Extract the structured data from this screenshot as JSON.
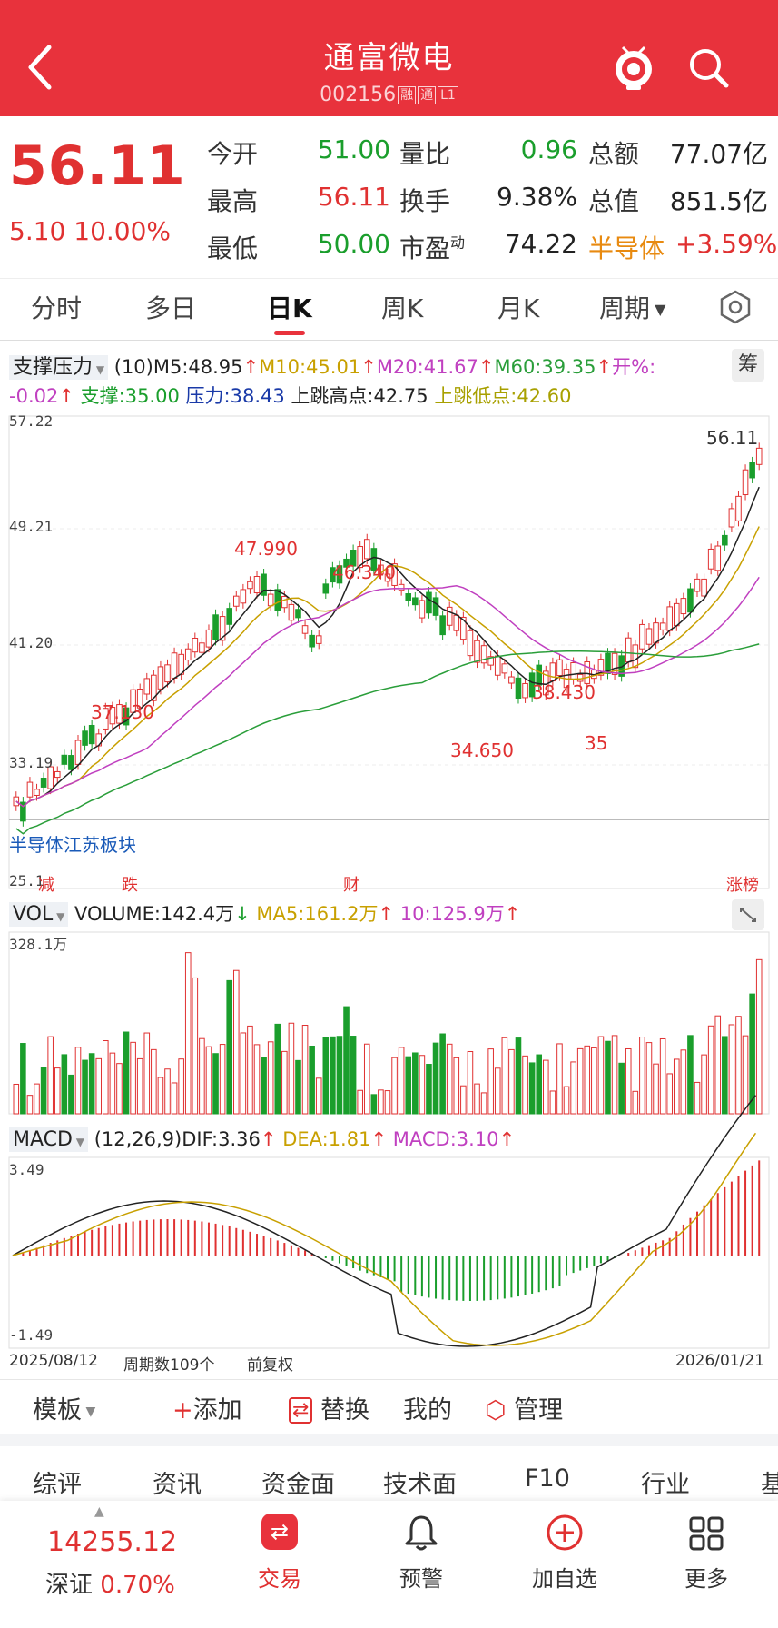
{
  "header": {
    "title": "通富微电",
    "code": "002156",
    "tags": [
      "融",
      "通",
      "L1"
    ]
  },
  "quote": {
    "price": "56.11",
    "change": "5.10",
    "change_pct": "10.00%",
    "fields": [
      {
        "label": "今开",
        "value": "51.00",
        "color": "green"
      },
      {
        "label": "量比",
        "value": "0.96",
        "color": "green"
      },
      {
        "label": "总额",
        "value": "77.07亿",
        "color": "black"
      },
      {
        "label": "最高",
        "value": "56.11",
        "color": "red"
      },
      {
        "label": "换手",
        "value": "9.38%",
        "color": "black"
      },
      {
        "label": "总值",
        "value": "851.5亿",
        "color": "black"
      },
      {
        "label": "最低",
        "value": "50.00",
        "color": "green"
      },
      {
        "label": "市盈",
        "label_sup": "动",
        "value": "74.22",
        "color": "black"
      }
    ],
    "sector": {
      "name": "半导体",
      "pct": "+3.59%"
    }
  },
  "tabs": [
    "分时",
    "多日",
    "日K",
    "周K",
    "月K",
    "周期"
  ],
  "active_tab": "日K",
  "kline": {
    "indicator_name": "支撑压力",
    "params": "(10)",
    "ma": [
      {
        "text": "M5:48.95",
        "color": "#222222"
      },
      {
        "text": "M10:45.01",
        "color": "#c8a000"
      },
      {
        "text": "M20:41.67",
        "color": "#c040c0"
      },
      {
        "text": "M60:39.35",
        "color": "#2a9e3a"
      }
    ],
    "open_pct_label": "开%:",
    "open_pct_value": "-0.02",
    "support": "支撑:35.00",
    "pressure": "压力:38.43",
    "gap_high": "上跳高点:42.75",
    "gap_low": "上跳低点:42.60",
    "chip_btn": "筹",
    "y_ticks": [
      "57.22",
      "49.21",
      "41.20",
      "33.19",
      "25.1"
    ],
    "price_labels": [
      "56.11",
      "47.990",
      "46.340",
      "37.130",
      "38.430",
      "34.650",
      "35"
    ],
    "sector_label": "半导体江苏板块",
    "markers": [
      "减",
      "跌",
      "财",
      "涨榜"
    ]
  },
  "volume": {
    "name": "VOL",
    "volume": "VOLUME:142.4万",
    "ma5": "MA5:161.2万",
    "ma10": "10:125.9万",
    "max": "328.1万"
  },
  "macd": {
    "name": "MACD",
    "params": "(12,26,9)",
    "dif": "DIF:3.36",
    "dea": "DEA:1.81",
    "macd": "MACD:3.10",
    "y_max": "3.49",
    "y_min": "-1.49"
  },
  "footer_axis": {
    "start": "2025/08/12",
    "period_count": "周期数109个",
    "adjust": "前复权",
    "end": "2026/01/21"
  },
  "toolbar": {
    "template": "模板",
    "add": "添加",
    "replace": "替换",
    "mine": "我的",
    "manage": "管理"
  },
  "info_tabs": [
    "综评",
    "资讯",
    "资金面",
    "技术面",
    "F10",
    "行业",
    "基"
  ],
  "active_info_tab": "资讯",
  "bottom_nav": {
    "index_value": "14255.12",
    "index_name": "深证",
    "index_pct": "0.70%",
    "items": [
      "交易",
      "预警",
      "加自选",
      "更多"
    ]
  },
  "colors": {
    "brand": "#e8323c",
    "up": "#e03131",
    "down": "#1a9e2c",
    "ma5": "#222222",
    "ma10": "#c8a000",
    "ma20": "#c040c0",
    "ma60": "#2a9e3a"
  }
}
